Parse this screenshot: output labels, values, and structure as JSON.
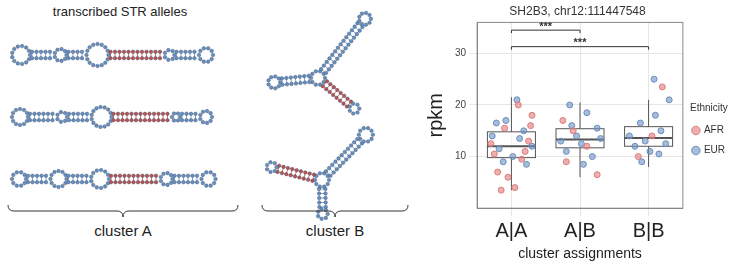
{
  "panel_left": {
    "title": "transcribed STR alleles",
    "clusters": [
      {
        "label": "cluster A",
        "structures": 3
      },
      {
        "label": "cluster B",
        "structures": 2
      }
    ]
  },
  "chart_data": {
    "type": "box",
    "title": "SH2B3, chr12:111447548",
    "x_label": "cluster assignments",
    "y_label": "rpkm",
    "categories": [
      "A|A",
      "A|B",
      "B|B"
    ],
    "ylim": [
      0,
      36
    ],
    "yticks": [
      10,
      20,
      30
    ],
    "grid": true,
    "legend": "right",
    "legend_title": "Ethnicity",
    "boxes": [
      {
        "min": 3.5,
        "q1": 9.8,
        "median": 12,
        "q3": 14.8,
        "max": 21.5
      },
      {
        "min": 6,
        "q1": 11.7,
        "median": 13.3,
        "q3": 15.4,
        "max": 20.5
      },
      {
        "min": 8,
        "q1": 12,
        "median": 13.6,
        "q3": 15.8,
        "max": 21
      }
    ],
    "annotations": [
      {
        "from": "A|A",
        "to": "A|B",
        "y": 34.5,
        "text": "***"
      },
      {
        "from": "A|A",
        "to": "B|B",
        "y": 31.3,
        "text": "***"
      }
    ],
    "series": [
      {
        "name": "AFR",
        "color": "#e07a7a",
        "marker": "circle",
        "x": [
          -0.3,
          -0.2,
          -0.1,
          0.05,
          0.15,
          0.25,
          0.3,
          -0.25,
          0.1,
          -0.05,
          0.2,
          -0.15,
          0.28,
          0.8,
          0.9,
          1.1,
          1.25,
          0.75,
          1.85,
          2.2,
          2.05
        ],
        "values": [
          12.5,
          7,
          15.5,
          4,
          9.5,
          13,
          18,
          10.5,
          20,
          6,
          11,
          3.5,
          16,
          9,
          15,
          12,
          6.5,
          17,
          10,
          23.5,
          14
        ]
      },
      {
        "name": "EUR",
        "color": "#6a8fbf",
        "marker": "circle",
        "x": [
          -0.28,
          -0.18,
          -0.08,
          0.02,
          0.12,
          0.22,
          0.3,
          -0.22,
          0.08,
          -0.12,
          0.18,
          0.72,
          0.8,
          0.88,
          0.95,
          1.02,
          1.1,
          1.18,
          1.25,
          1.3,
          0.85,
          1.05,
          1.72,
          1.8,
          1.88,
          1.95,
          2.02,
          2.1,
          2.18,
          2.25,
          2.3,
          1.9,
          2.08,
          2.15
        ],
        "values": [
          14,
          11.5,
          17,
          10,
          13.5,
          8.5,
          12,
          16.5,
          21,
          9,
          15,
          13,
          11,
          16,
          14,
          12.5,
          18.5,
          10,
          15.5,
          13.5,
          20,
          8.5,
          14,
          12,
          16.5,
          13,
          11,
          18,
          15,
          12.5,
          21,
          9,
          25,
          10.5
        ]
      }
    ]
  }
}
